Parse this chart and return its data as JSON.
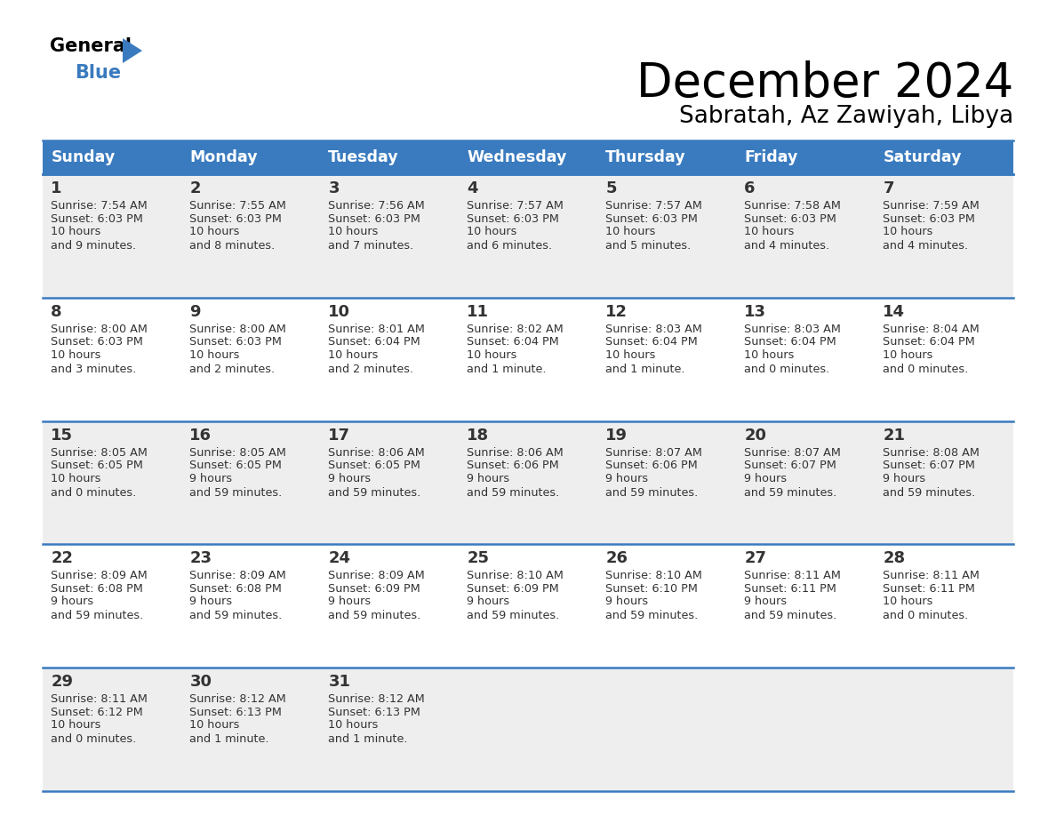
{
  "title": "December 2024",
  "subtitle": "Sabratah, Az Zawiyah, Libya",
  "header_bg": "#3a7bbf",
  "header_text": "#ffffff",
  "row_bg_odd": "#eeeeee",
  "row_bg_even": "#ffffff",
  "border_color": "#3a7bbf",
  "text_color": "#333333",
  "days_of_week": [
    "Sunday",
    "Monday",
    "Tuesday",
    "Wednesday",
    "Thursday",
    "Friday",
    "Saturday"
  ],
  "weeks": [
    [
      {
        "day": 1,
        "sunrise": "7:54 AM",
        "sunset": "6:03 PM",
        "daylight": "10 hours\nand 9 minutes."
      },
      {
        "day": 2,
        "sunrise": "7:55 AM",
        "sunset": "6:03 PM",
        "daylight": "10 hours\nand 8 minutes."
      },
      {
        "day": 3,
        "sunrise": "7:56 AM",
        "sunset": "6:03 PM",
        "daylight": "10 hours\nand 7 minutes."
      },
      {
        "day": 4,
        "sunrise": "7:57 AM",
        "sunset": "6:03 PM",
        "daylight": "10 hours\nand 6 minutes."
      },
      {
        "day": 5,
        "sunrise": "7:57 AM",
        "sunset": "6:03 PM",
        "daylight": "10 hours\nand 5 minutes."
      },
      {
        "day": 6,
        "sunrise": "7:58 AM",
        "sunset": "6:03 PM",
        "daylight": "10 hours\nand 4 minutes."
      },
      {
        "day": 7,
        "sunrise": "7:59 AM",
        "sunset": "6:03 PM",
        "daylight": "10 hours\nand 4 minutes."
      }
    ],
    [
      {
        "day": 8,
        "sunrise": "8:00 AM",
        "sunset": "6:03 PM",
        "daylight": "10 hours\nand 3 minutes."
      },
      {
        "day": 9,
        "sunrise": "8:00 AM",
        "sunset": "6:03 PM",
        "daylight": "10 hours\nand 2 minutes."
      },
      {
        "day": 10,
        "sunrise": "8:01 AM",
        "sunset": "6:04 PM",
        "daylight": "10 hours\nand 2 minutes."
      },
      {
        "day": 11,
        "sunrise": "8:02 AM",
        "sunset": "6:04 PM",
        "daylight": "10 hours\nand 1 minute."
      },
      {
        "day": 12,
        "sunrise": "8:03 AM",
        "sunset": "6:04 PM",
        "daylight": "10 hours\nand 1 minute."
      },
      {
        "day": 13,
        "sunrise": "8:03 AM",
        "sunset": "6:04 PM",
        "daylight": "10 hours\nand 0 minutes."
      },
      {
        "day": 14,
        "sunrise": "8:04 AM",
        "sunset": "6:04 PM",
        "daylight": "10 hours\nand 0 minutes."
      }
    ],
    [
      {
        "day": 15,
        "sunrise": "8:05 AM",
        "sunset": "6:05 PM",
        "daylight": "10 hours\nand 0 minutes."
      },
      {
        "day": 16,
        "sunrise": "8:05 AM",
        "sunset": "6:05 PM",
        "daylight": "9 hours\nand 59 minutes."
      },
      {
        "day": 17,
        "sunrise": "8:06 AM",
        "sunset": "6:05 PM",
        "daylight": "9 hours\nand 59 minutes."
      },
      {
        "day": 18,
        "sunrise": "8:06 AM",
        "sunset": "6:06 PM",
        "daylight": "9 hours\nand 59 minutes."
      },
      {
        "day": 19,
        "sunrise": "8:07 AM",
        "sunset": "6:06 PM",
        "daylight": "9 hours\nand 59 minutes."
      },
      {
        "day": 20,
        "sunrise": "8:07 AM",
        "sunset": "6:07 PM",
        "daylight": "9 hours\nand 59 minutes."
      },
      {
        "day": 21,
        "sunrise": "8:08 AM",
        "sunset": "6:07 PM",
        "daylight": "9 hours\nand 59 minutes."
      }
    ],
    [
      {
        "day": 22,
        "sunrise": "8:09 AM",
        "sunset": "6:08 PM",
        "daylight": "9 hours\nand 59 minutes."
      },
      {
        "day": 23,
        "sunrise": "8:09 AM",
        "sunset": "6:08 PM",
        "daylight": "9 hours\nand 59 minutes."
      },
      {
        "day": 24,
        "sunrise": "8:09 AM",
        "sunset": "6:09 PM",
        "daylight": "9 hours\nand 59 minutes."
      },
      {
        "day": 25,
        "sunrise": "8:10 AM",
        "sunset": "6:09 PM",
        "daylight": "9 hours\nand 59 minutes."
      },
      {
        "day": 26,
        "sunrise": "8:10 AM",
        "sunset": "6:10 PM",
        "daylight": "9 hours\nand 59 minutes."
      },
      {
        "day": 27,
        "sunrise": "8:11 AM",
        "sunset": "6:11 PM",
        "daylight": "9 hours\nand 59 minutes."
      },
      {
        "day": 28,
        "sunrise": "8:11 AM",
        "sunset": "6:11 PM",
        "daylight": "10 hours\nand 0 minutes."
      }
    ],
    [
      {
        "day": 29,
        "sunrise": "8:11 AM",
        "sunset": "6:12 PM",
        "daylight": "10 hours\nand 0 minutes."
      },
      {
        "day": 30,
        "sunrise": "8:12 AM",
        "sunset": "6:13 PM",
        "daylight": "10 hours\nand 1 minute."
      },
      {
        "day": 31,
        "sunrise": "8:12 AM",
        "sunset": "6:13 PM",
        "daylight": "10 hours\nand 1 minute."
      },
      null,
      null,
      null,
      null
    ]
  ]
}
